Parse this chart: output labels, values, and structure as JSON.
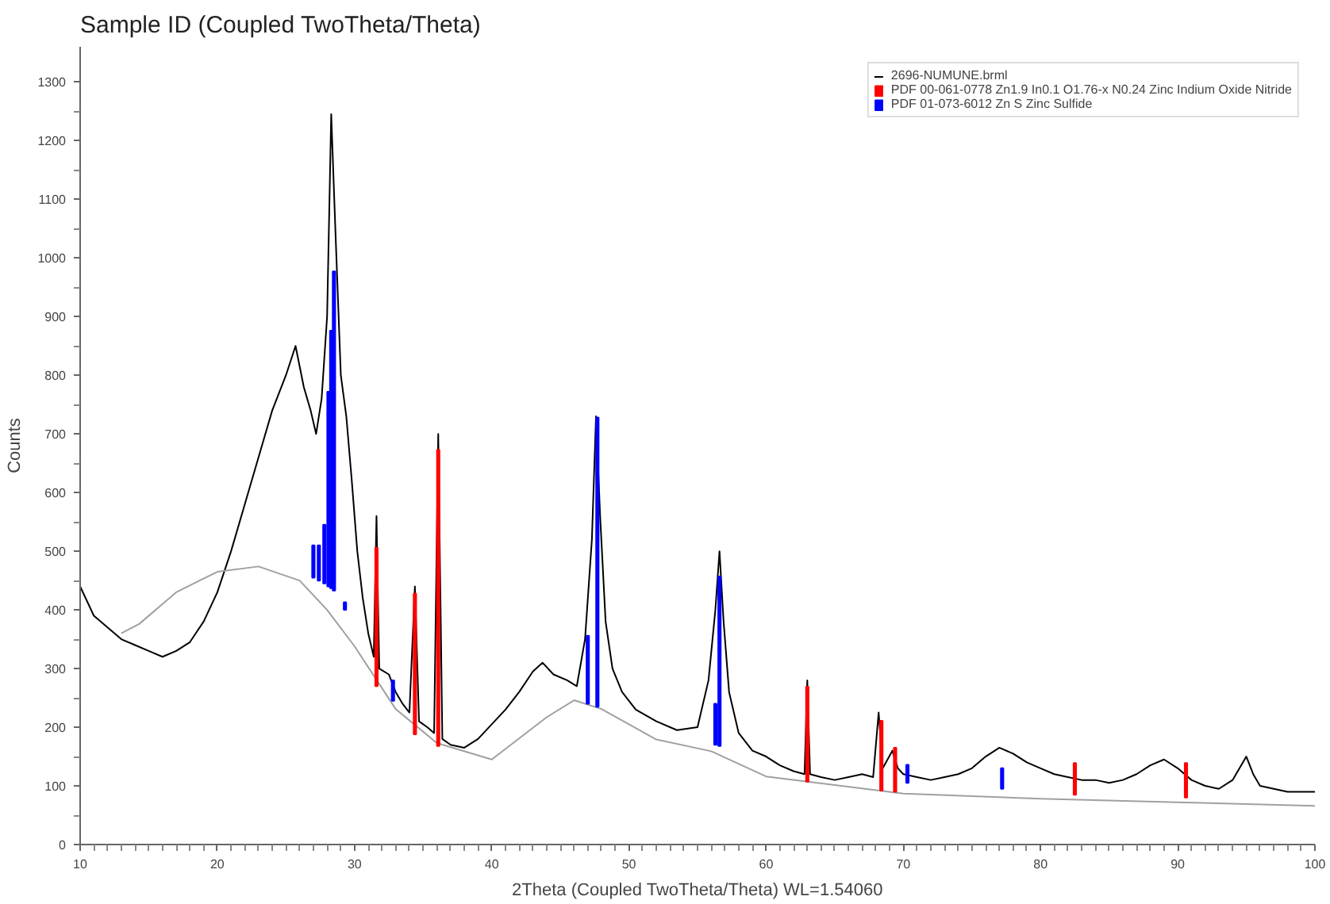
{
  "chart_data": {
    "type": "line",
    "title": "Sample ID (Coupled TwoTheta/Theta)",
    "xlabel": "2Theta (Coupled TwoTheta/Theta) WL=1.54060",
    "ylabel": "Counts",
    "xlim": [
      10,
      100
    ],
    "xticks": [
      10,
      20,
      30,
      40,
      50,
      60,
      70,
      80,
      90,
      100
    ],
    "ylim": [
      0,
      1360
    ],
    "yticks": [
      0,
      100,
      200,
      300,
      400,
      500,
      600,
      700,
      800,
      900,
      1000,
      1100,
      1200,
      1300
    ],
    "grid": false,
    "legend": "top right",
    "marker": "none",
    "line_style": "solid",
    "series": [
      {
        "name": "2696-NUMUNE.brml",
        "color": "#000000",
        "x": [
          10,
          11,
          12,
          13,
          14,
          15,
          16,
          17,
          18,
          19,
          20,
          21,
          22,
          23,
          24,
          25,
          25.7,
          26.3,
          26.8,
          27.2,
          27.6,
          28.0,
          28.3,
          28.6,
          29.0,
          29.4,
          29.8,
          30.2,
          30.6,
          31.0,
          31.4,
          31.6,
          31.8,
          32.5,
          33.0,
          33.5,
          34.0,
          34.4,
          34.7,
          35.3,
          35.8,
          36.1,
          36.4,
          37,
          38,
          39,
          40,
          41,
          42,
          43,
          43.7,
          44.5,
          45.5,
          46.2,
          46.8,
          47.3,
          47.6,
          47.9,
          48.3,
          48.8,
          49.5,
          50.5,
          52,
          53.5,
          55,
          55.8,
          56.3,
          56.6,
          56.9,
          57.3,
          58,
          59,
          60,
          61,
          62,
          62.8,
          63.0,
          63.2,
          64,
          65,
          66,
          67,
          67.8,
          68.2,
          68.5,
          69.2,
          69.6,
          70,
          71,
          72,
          73,
          74,
          75,
          76,
          77,
          78,
          79,
          80,
          81,
          82,
          83,
          84,
          85,
          86,
          87,
          88,
          89,
          90,
          91,
          92,
          93,
          94,
          95,
          95.5,
          96,
          97,
          98,
          99,
          100
        ],
        "values": [
          440,
          390,
          370,
          350,
          340,
          330,
          320,
          330,
          345,
          380,
          430,
          500,
          580,
          660,
          740,
          800,
          850,
          780,
          740,
          700,
          760,
          900,
          1245,
          1050,
          800,
          730,
          620,
          500,
          420,
          360,
          320,
          560,
          300,
          290,
          260,
          240,
          225,
          440,
          210,
          200,
          190,
          700,
          180,
          170,
          165,
          180,
          205,
          230,
          260,
          295,
          310,
          290,
          280,
          270,
          350,
          520,
          730,
          560,
          380,
          300,
          260,
          230,
          210,
          195,
          200,
          280,
          400,
          500,
          380,
          260,
          190,
          160,
          150,
          135,
          125,
          120,
          280,
          120,
          115,
          110,
          115,
          120,
          115,
          225,
          130,
          160,
          130,
          120,
          115,
          110,
          115,
          120,
          130,
          150,
          165,
          155,
          140,
          130,
          120,
          115,
          110,
          110,
          105,
          110,
          120,
          135,
          145,
          130,
          110,
          100,
          95,
          110,
          150,
          120,
          100,
          95,
          90,
          90,
          90
        ]
      },
      {
        "color": "#a0a0a0",
        "x": [
          13,
          14.3,
          17,
          20,
          23,
          26,
          28,
          30,
          33,
          36,
          40,
          44,
          46,
          48,
          52,
          56,
          60,
          70,
          80,
          90,
          100
        ],
        "values": [
          360,
          376,
          430,
          465,
          474,
          450,
          400,
          338,
          231,
          173,
          145,
          217,
          246,
          231,
          179,
          159,
          116,
          87,
          78,
          72,
          66
        ]
      },
      {
        "name": "PDF 00-061-0778 Zn1.9 In0.1 O1.76-x N0.24 Zinc Indium Oxide Nitride",
        "type": "bar",
        "color": "#ff0000",
        "x": [
          31.6,
          34.4,
          36.1,
          63.0,
          68.4,
          69.4,
          82.5,
          90.6
        ],
        "base": [
          270,
          188,
          168,
          107,
          92,
          90,
          85,
          80
        ],
        "values": [
          236,
          240,
          505,
          162,
          119,
          75,
          54,
          59
        ]
      },
      {
        "name": "PDF 01-073-6012 Zn S Zinc Sulfide",
        "type": "bar",
        "color": "#0000ff",
        "x": [
          27.0,
          27.4,
          27.8,
          28.1,
          28.3,
          28.5,
          29.3,
          32.8,
          47.0,
          47.7,
          56.3,
          56.6,
          70.3,
          77.2
        ],
        "base": [
          455,
          450,
          445,
          440,
          437,
          433,
          400,
          245,
          240,
          235,
          170,
          168,
          105,
          95
        ],
        "values": [
          55,
          60,
          100,
          332,
          439,
          544,
          13,
          35,
          116,
          493,
          70,
          289,
          31,
          35
        ]
      }
    ]
  }
}
